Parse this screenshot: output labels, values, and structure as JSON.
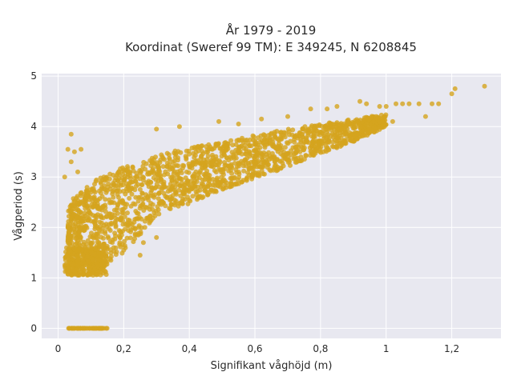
{
  "chart_data": {
    "type": "scatter",
    "title_lines": [
      "År 1979 - 2019",
      "Koordinat (Sweref 99 TM): E 349245, N 6208845"
    ],
    "xlabel": "Signifikant våghöjd (m)",
    "ylabel": "Vågperiod (s)",
    "xlim": [
      -0.05,
      1.35
    ],
    "ylim": [
      -0.2,
      5.05
    ],
    "x_ticks": [
      0,
      0.2,
      0.4,
      0.6,
      0.8,
      1,
      1.2
    ],
    "x_tick_labels": [
      "0",
      "0,2",
      "0,4",
      "0,6",
      "0,8",
      "1",
      "1,2"
    ],
    "y_ticks": [
      0,
      1,
      2,
      3,
      4,
      5
    ],
    "y_tick_labels": [
      "0",
      "1",
      "2",
      "3",
      "4",
      "5"
    ],
    "grid": true,
    "marker_color": "#d4a41e",
    "plot_background": "#e8e8f0",
    "series_summary": {
      "zero_period_band": {
        "x_range": [
          0.02,
          0.15
        ],
        "y": 0
      },
      "low_wave_band": {
        "x_range": [
          0.02,
          0.15
        ],
        "y_range": [
          1.05,
          1.6
        ]
      },
      "main_cloud_lower_edge": [
        [
          0.03,
          1.05
        ],
        [
          0.1,
          1.1
        ],
        [
          0.2,
          1.5
        ],
        [
          0.3,
          2.2
        ],
        [
          0.5,
          2.75
        ],
        [
          0.7,
          3.2
        ],
        [
          0.9,
          3.7
        ],
        [
          1.0,
          4.0
        ]
      ],
      "main_cloud_upper_edge": [
        [
          0.03,
          2.5
        ],
        [
          0.1,
          2.9
        ],
        [
          0.2,
          3.2
        ],
        [
          0.3,
          3.45
        ],
        [
          0.5,
          3.7
        ],
        [
          0.7,
          3.95
        ],
        [
          0.9,
          4.15
        ],
        [
          1.0,
          4.25
        ]
      ],
      "outliers": [
        {
          "x": 0.04,
          "y": 3.85
        },
        {
          "x": 0.03,
          "y": 3.55
        },
        {
          "x": 0.05,
          "y": 3.5
        },
        {
          "x": 0.07,
          "y": 3.55
        },
        {
          "x": 0.04,
          "y": 3.3
        },
        {
          "x": 0.06,
          "y": 3.1
        },
        {
          "x": 0.02,
          "y": 3.0
        },
        {
          "x": 0.3,
          "y": 3.95
        },
        {
          "x": 0.37,
          "y": 4.0
        },
        {
          "x": 0.49,
          "y": 4.1
        },
        {
          "x": 0.55,
          "y": 4.05
        },
        {
          "x": 0.62,
          "y": 4.15
        },
        {
          "x": 0.7,
          "y": 4.2
        },
        {
          "x": 0.77,
          "y": 4.35
        },
        {
          "x": 0.82,
          "y": 4.35
        },
        {
          "x": 0.85,
          "y": 4.4
        },
        {
          "x": 0.92,
          "y": 4.5
        },
        {
          "x": 0.94,
          "y": 4.45
        },
        {
          "x": 0.98,
          "y": 4.4
        },
        {
          "x": 1.0,
          "y": 4.4
        },
        {
          "x": 1.03,
          "y": 4.45
        },
        {
          "x": 1.05,
          "y": 4.45
        },
        {
          "x": 1.07,
          "y": 4.45
        },
        {
          "x": 1.1,
          "y": 4.45
        },
        {
          "x": 1.12,
          "y": 4.2
        },
        {
          "x": 1.14,
          "y": 4.45
        },
        {
          "x": 1.16,
          "y": 4.45
        },
        {
          "x": 1.2,
          "y": 4.65
        },
        {
          "x": 1.21,
          "y": 4.75
        },
        {
          "x": 1.3,
          "y": 4.8
        },
        {
          "x": 0.99,
          "y": 4.1
        },
        {
          "x": 1.02,
          "y": 4.1
        },
        {
          "x": 0.3,
          "y": 1.8
        },
        {
          "x": 0.26,
          "y": 1.7
        },
        {
          "x": 0.2,
          "y": 1.55
        },
        {
          "x": 0.25,
          "y": 1.45
        }
      ]
    }
  }
}
